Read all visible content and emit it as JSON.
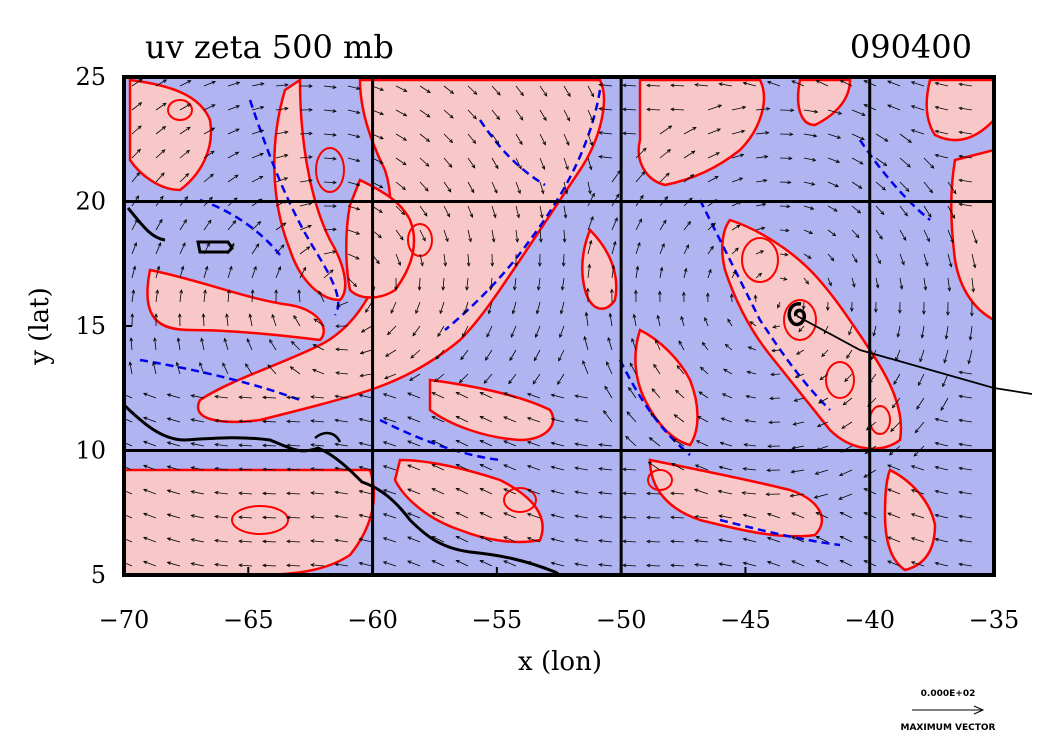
{
  "figure": {
    "title_left": "uv zeta 500 mb",
    "title_right": "090400",
    "xlabel": "x (lon)",
    "ylabel": "y (lat)"
  },
  "axes": {
    "x_ticks": [
      -70,
      -65,
      -60,
      -55,
      -50,
      -45,
      -40,
      -35
    ],
    "y_ticks": [
      5,
      10,
      15,
      20,
      25
    ],
    "x_tick_labels": [
      "−70",
      "−65",
      "−60",
      "−55",
      "−50",
      "−45",
      "−40",
      "−35"
    ],
    "y_tick_labels": [
      "5",
      "10",
      "15",
      "20",
      "25"
    ],
    "xlim": [
      -70,
      -35
    ],
    "ylim": [
      5,
      25
    ],
    "grid_lon": [
      -60,
      -50,
      -40
    ],
    "grid_lat": [
      10,
      20
    ]
  },
  "legend": {
    "vector_value": "0.000E+02",
    "vector_label": "MAXIMUM VECTOR"
  },
  "colors": {
    "positive_fill": "#f8c8c8",
    "negative_fill": "#b0b4f0",
    "positive_contour": "#ff0000",
    "negative_contour": "#0000ee",
    "coast": "#000000",
    "vector": "#000000"
  },
  "storm": {
    "track_start": [
      -43,
      15.2
    ],
    "track_end": [
      -34.5,
      12.5
    ],
    "symbol": "tropical-cyclone"
  }
}
